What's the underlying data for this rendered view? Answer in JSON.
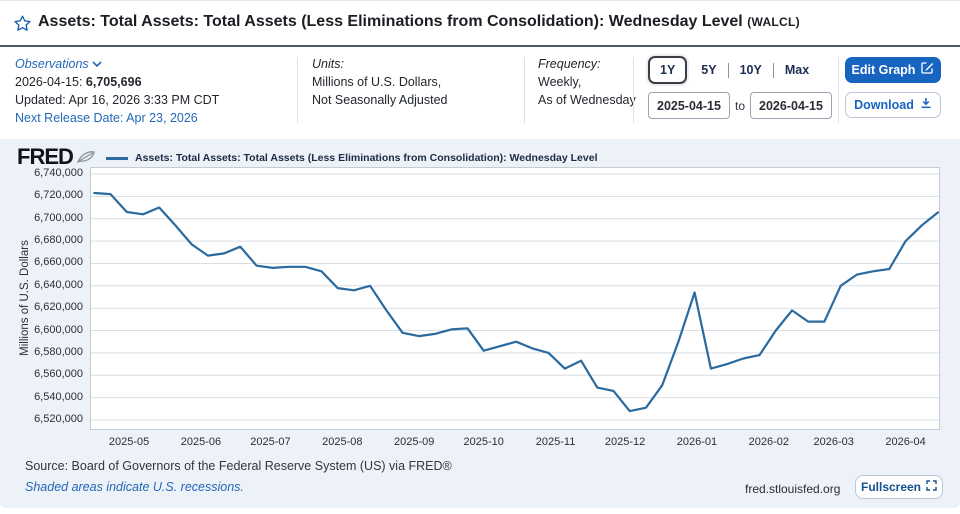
{
  "header": {
    "title": "Assets: Total Assets: Total Assets (Less Eliminations from Consolidation): Wednesday Level",
    "ticker": "(WALCL)"
  },
  "info": {
    "observations": {
      "label": "Observations",
      "latest_date": "2026-04-15:",
      "latest_value": "6,705,696",
      "updated": "Updated: Apr 16, 2026 3:33 PM CDT",
      "next_release": "Next Release Date: Apr 23, 2026"
    },
    "units": {
      "label": "Units:",
      "line1": "Millions of U.S. Dollars,",
      "line2": "Not Seasonally Adjusted"
    },
    "frequency": {
      "label": "Frequency:",
      "line1": "Weekly,",
      "line2": "As of Wednesday"
    },
    "range": {
      "buttons": [
        "1Y",
        "5Y",
        "10Y",
        "Max"
      ],
      "selected": "1Y",
      "date_from": "2025-04-15",
      "to_label": "to",
      "date_to": "2026-04-15"
    },
    "actions": {
      "edit_graph": "Edit Graph",
      "download": "Download"
    }
  },
  "graph": {
    "logo": "FRED",
    "legend": "Assets: Total Assets: Total Assets (Less Eliminations from Consolidation): Wednesday Level"
  },
  "footer": {
    "source": "Source: Board of Governors of the Federal Reserve System (US) via FRED®",
    "recessions_note": "Shaded areas indicate U.S. recessions.",
    "site": "fred.stlouisfed.org",
    "fullscreen": "Fullscreen"
  },
  "colors": {
    "accent_blue": "#1765c1",
    "link_blue": "#2468b9",
    "series_line": "#2a6a9e"
  },
  "chart_data": {
    "type": "line",
    "title": "Assets: Total Assets: Total Assets (Less Eliminations from Consolidation): Wednesday Level",
    "xlabel": "",
    "ylabel": "Millions of U.S. Dollars",
    "x_range": [
      "2025-04-15",
      "2026-04-15"
    ],
    "ylim": [
      6520000,
      6740000
    ],
    "y_tick_step": 20000,
    "grid": "horizontal",
    "legend_position": "top-left",
    "x_ticks": [
      "2025-05",
      "2025-06",
      "2025-07",
      "2025-08",
      "2025-09",
      "2025-10",
      "2025-11",
      "2025-12",
      "2026-01",
      "2026-02",
      "2026-03",
      "2026-04"
    ],
    "frequency": "Weekly, As of Wednesday",
    "units": "Millions of U.S. Dollars",
    "series": [
      {
        "name": "Assets: Total Assets: Total Assets (Less Eliminations from Consolidation): Wednesday Level",
        "color": "#2a6a9e",
        "x": [
          "2025-04-16",
          "2025-04-23",
          "2025-04-30",
          "2025-05-07",
          "2025-05-14",
          "2025-05-21",
          "2025-05-28",
          "2025-06-04",
          "2025-06-11",
          "2025-06-18",
          "2025-06-25",
          "2025-07-02",
          "2025-07-09",
          "2025-07-16",
          "2025-07-23",
          "2025-07-30",
          "2025-08-06",
          "2025-08-13",
          "2025-08-20",
          "2025-08-27",
          "2025-09-03",
          "2025-09-10",
          "2025-09-17",
          "2025-09-24",
          "2025-10-01",
          "2025-10-08",
          "2025-10-15",
          "2025-10-22",
          "2025-10-29",
          "2025-11-05",
          "2025-11-12",
          "2025-11-19",
          "2025-11-26",
          "2025-12-03",
          "2025-12-10",
          "2025-12-17",
          "2025-12-24",
          "2025-12-31",
          "2026-01-07",
          "2026-01-14",
          "2026-01-21",
          "2026-01-28",
          "2026-02-04",
          "2026-02-11",
          "2026-02-18",
          "2026-02-25",
          "2026-03-04",
          "2026-03-11",
          "2026-03-18",
          "2026-03-25",
          "2026-04-01",
          "2026-04-08",
          "2026-04-15"
        ],
        "values": [
          6723000,
          6722000,
          6706000,
          6704000,
          6710000,
          6694000,
          6677000,
          6667000,
          6669000,
          6675000,
          6658000,
          6656000,
          6657000,
          6657000,
          6653000,
          6638000,
          6636000,
          6640000,
          6618000,
          6598000,
          6595000,
          6597000,
          6601000,
          6602000,
          6582000,
          6586000,
          6590000,
          6584000,
          6580000,
          6566000,
          6573000,
          6549000,
          6546000,
          6528000,
          6531000,
          6551000,
          6590000,
          6634000,
          6566000,
          6570000,
          6575000,
          6578000,
          6600000,
          6618000,
          6608000,
          6608000,
          6640000,
          6650000,
          6653000,
          6655000,
          6680000,
          6694000,
          6705696
        ]
      }
    ]
  }
}
